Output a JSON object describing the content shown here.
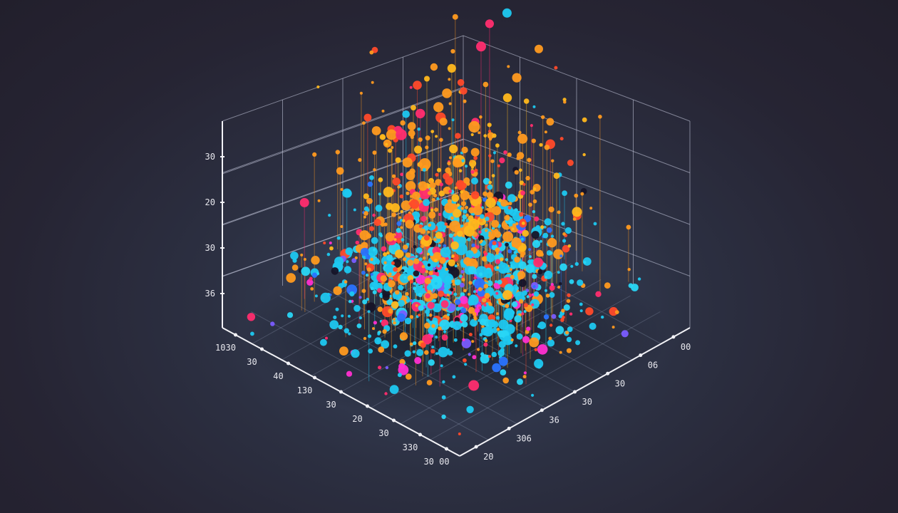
{
  "chart_data": {
    "type": "scatter",
    "projection": "3d",
    "title": "",
    "xlabel": "",
    "ylabel": "",
    "zlabel": "",
    "grid": true,
    "legend": "none",
    "vertical_axis_tick_labels": [
      "30",
      "20",
      "30",
      "36"
    ],
    "left_base_axis_tick_labels": [
      "1030",
      "30",
      "40",
      "130",
      "30",
      "20",
      "30",
      "330",
      "30 00"
    ],
    "right_base_axis_tick_labels": [
      "20",
      "306",
      "36",
      "30",
      "30",
      "06",
      "00"
    ],
    "point_count": 1400,
    "point_colors": [
      "#1ec8f0",
      "#29d6f5",
      "#ff9a1f",
      "#ffb81c",
      "#ff4a2a",
      "#ff2d6f",
      "#ff2fd0",
      "#7a5cff",
      "#2a73ff",
      "#161428"
    ],
    "colors": {
      "background": "#262433",
      "axis": "#f2f2f6",
      "grid": "#c8cce0"
    }
  }
}
